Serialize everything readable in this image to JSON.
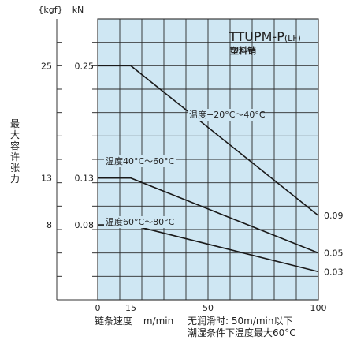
{
  "chart_data": {
    "type": "line",
    "title": "TTUPM-P",
    "title_suffix": "(LF)",
    "subtitle": "塑料销",
    "y_unit_left": "{kgf}",
    "y_unit_right": "kN",
    "ylabel": "最大容许张力",
    "xlabel": "链条速度",
    "xunit": "m/min",
    "xlim": [
      0,
      100
    ],
    "ylim": [
      0,
      0.3
    ],
    "x_ticks": [
      0,
      15,
      50,
      100
    ],
    "y_ticks_kN": [
      {
        "kN": "0.25",
        "kgf": "25",
        "value": 0.25
      },
      {
        "kN": "0.13",
        "kgf": "13",
        "value": 0.13
      },
      {
        "kN": "0.08",
        "kgf": "8",
        "value": 0.08
      }
    ],
    "series": [
      {
        "name": "温度−20°C～40°C",
        "x": [
          0,
          15,
          100
        ],
        "y": [
          0.25,
          0.25,
          0.09
        ],
        "end_label": "0.09"
      },
      {
        "name": "温度40°C～60°C",
        "x": [
          0,
          15,
          100
        ],
        "y": [
          0.13,
          0.13,
          0.05
        ],
        "end_label": "0.05"
      },
      {
        "name": "温度60°C～80°C",
        "x": [
          0,
          15,
          100
        ],
        "y": [
          0.08,
          0.08,
          0.03
        ],
        "end_label": "0.03"
      }
    ],
    "notes": [
      "无润滑时: 50m/min以下",
      "潮湿条件下温度最大60°C"
    ],
    "grid": true,
    "colors": {
      "plot_bg": "#cfe7f3",
      "grid": "#2a2a2a",
      "line": "#1a1a1a"
    }
  }
}
